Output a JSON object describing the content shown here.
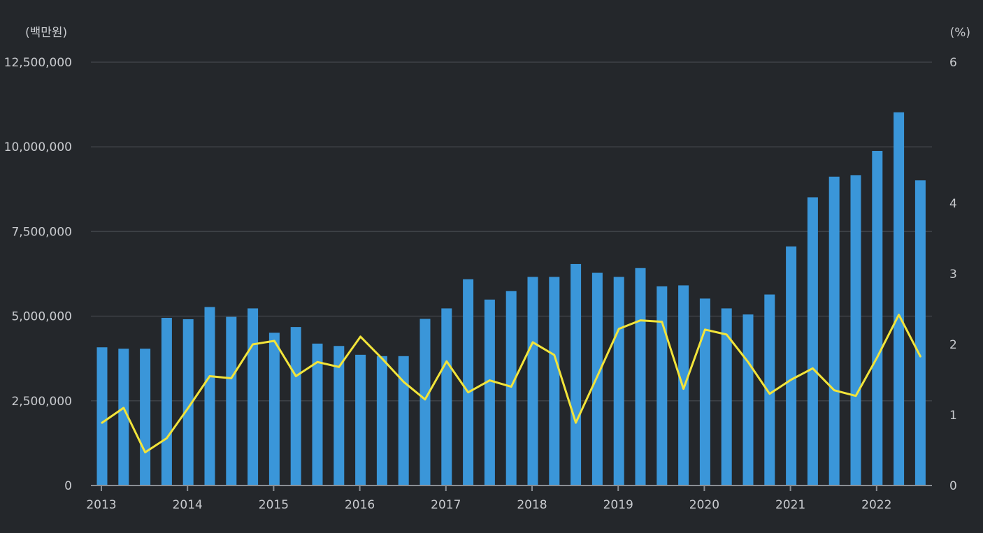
{
  "chart_data": {
    "type": "bar",
    "title": "",
    "y_left_unit_label": "(백만원)",
    "y_right_unit_label": "(%)",
    "ylim_left": [
      0,
      12500000
    ],
    "ylim_right": [
      0,
      6
    ],
    "grid": true,
    "left_ticks": [
      {
        "value": 0,
        "label": "0"
      },
      {
        "value": 2500000,
        "label": "2,500,000"
      },
      {
        "value": 5000000,
        "label": "5,000,000"
      },
      {
        "value": 7500000,
        "label": "7,500,000"
      },
      {
        "value": 10000000,
        "label": "10,000,000"
      },
      {
        "value": 12500000,
        "label": "12,500,000"
      }
    ],
    "right_ticks": [
      {
        "value": 0,
        "label": "0"
      },
      {
        "value": 1,
        "label": "1"
      },
      {
        "value": 2,
        "label": "2"
      },
      {
        "value": 3,
        "label": "3"
      },
      {
        "value": 4,
        "label": "4"
      },
      {
        "value": 6,
        "label": "6"
      }
    ],
    "year_labels": [
      {
        "index": 0,
        "label": "2013"
      },
      {
        "index": 4,
        "label": "2014"
      },
      {
        "index": 8,
        "label": "2015"
      },
      {
        "index": 12,
        "label": "2016"
      },
      {
        "index": 16,
        "label": "2017"
      },
      {
        "index": 20,
        "label": "2018"
      },
      {
        "index": 24,
        "label": "2019"
      },
      {
        "index": 28,
        "label": "2020"
      },
      {
        "index": 32,
        "label": "2021"
      },
      {
        "index": 36,
        "label": "2022"
      }
    ],
    "series": [
      {
        "type": "bar",
        "axis": "left",
        "color": "#3a96d9",
        "values": [
          4080000,
          4040000,
          4040000,
          4950000,
          4910000,
          5270000,
          4980000,
          5230000,
          4510000,
          4680000,
          4190000,
          4120000,
          3860000,
          3820000,
          3820000,
          4920000,
          5230000,
          6090000,
          5490000,
          5740000,
          6160000,
          6160000,
          6540000,
          6280000,
          6160000,
          6420000,
          5880000,
          5910000,
          5520000,
          5230000,
          5050000,
          5640000,
          7060000,
          8510000,
          9120000,
          9160000,
          9880000,
          11020000,
          9010000
        ]
      },
      {
        "type": "line",
        "axis": "right",
        "color": "#f2e43a",
        "values": [
          0.89,
          1.1,
          0.47,
          0.67,
          1.1,
          1.55,
          1.52,
          2.0,
          2.05,
          1.55,
          1.75,
          1.68,
          2.11,
          1.8,
          1.47,
          1.22,
          1.76,
          1.32,
          1.49,
          1.4,
          2.03,
          1.85,
          0.89,
          1.55,
          2.22,
          2.34,
          2.32,
          1.37,
          2.21,
          2.14,
          1.75,
          1.3,
          1.5,
          1.66,
          1.35,
          1.27,
          1.82,
          2.42,
          1.83
        ]
      }
    ],
    "colors": {
      "background": "#24272b",
      "grid": "#3e4247",
      "axis": "#8a8e94",
      "text": "#c9cbcf"
    }
  }
}
